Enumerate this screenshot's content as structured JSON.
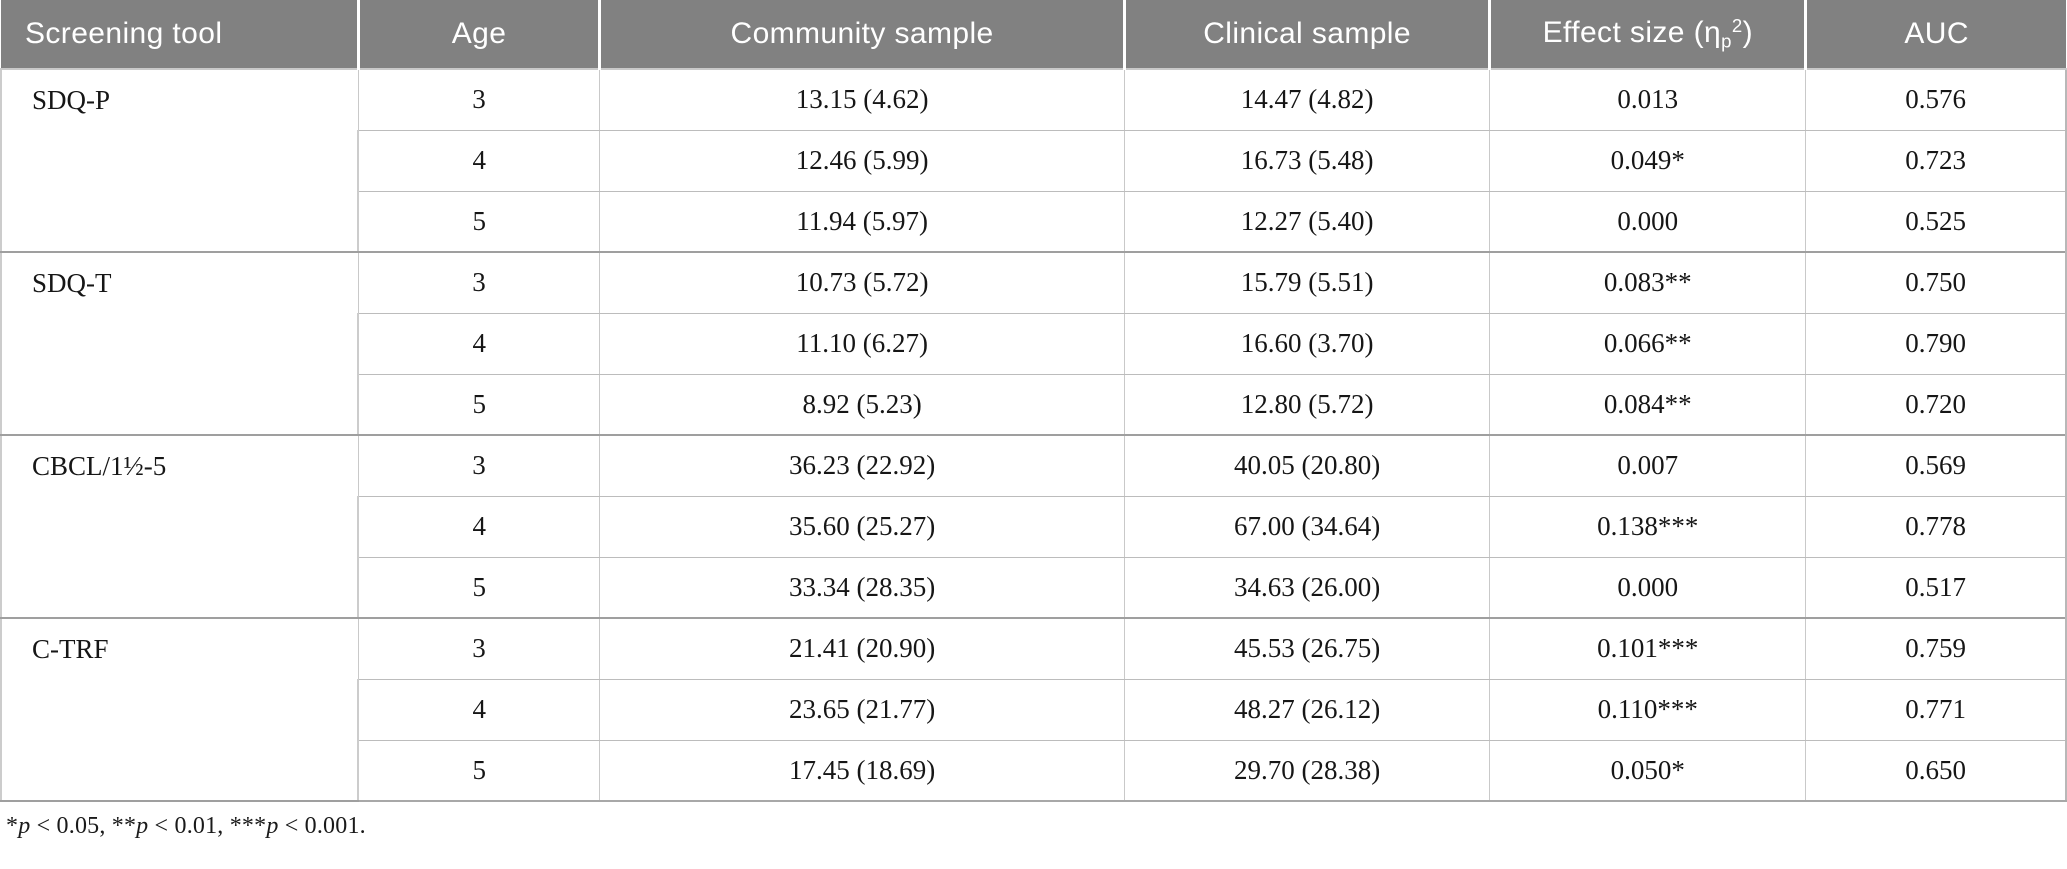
{
  "colors": {
    "header_bg": "#818181",
    "header_text": "#ffffff",
    "group_border": "#9f9f9f",
    "cell_border": "#c9c9c9",
    "body_text": "#161616"
  },
  "table": {
    "headers": {
      "screening_tool": "Screening tool",
      "age": "Age",
      "community": "Community sample",
      "clinical": "Clinical sample",
      "effect_prefix": "Effect size (η",
      "effect_sub": "p",
      "effect_sup": "2",
      "effect_suffix": ")",
      "auc": "AUC"
    },
    "groups": [
      {
        "tool": "SDQ-P",
        "rows": [
          {
            "age": "3",
            "community": "13.15 (4.62)",
            "clinical": "14.47 (4.82)",
            "effect": "0.013",
            "auc": "0.576"
          },
          {
            "age": "4",
            "community": "12.46 (5.99)",
            "clinical": "16.73 (5.48)",
            "effect": "0.049*",
            "auc": "0.723"
          },
          {
            "age": "5",
            "community": "11.94 (5.97)",
            "clinical": "12.27 (5.40)",
            "effect": "0.000",
            "auc": "0.525"
          }
        ]
      },
      {
        "tool": "SDQ-T",
        "rows": [
          {
            "age": "3",
            "community": "10.73 (5.72)",
            "clinical": "15.79 (5.51)",
            "effect": "0.083**",
            "auc": "0.750"
          },
          {
            "age": "4",
            "community": "11.10 (6.27)",
            "clinical": "16.60 (3.70)",
            "effect": "0.066**",
            "auc": "0.790"
          },
          {
            "age": "5",
            "community": "8.92 (5.23)",
            "clinical": "12.80 (5.72)",
            "effect": "0.084**",
            "auc": "0.720"
          }
        ]
      },
      {
        "tool": "CBCL/1½-5",
        "rows": [
          {
            "age": "3",
            "community": "36.23 (22.92)",
            "clinical": "40.05 (20.80)",
            "effect": "0.007",
            "auc": "0.569"
          },
          {
            "age": "4",
            "community": "35.60 (25.27)",
            "clinical": "67.00 (34.64)",
            "effect": "0.138***",
            "auc": "0.778"
          },
          {
            "age": "5",
            "community": "33.34 (28.35)",
            "clinical": "34.63 (26.00)",
            "effect": "0.000",
            "auc": "0.517"
          }
        ]
      },
      {
        "tool": "C-TRF",
        "rows": [
          {
            "age": "3",
            "community": "21.41 (20.90)",
            "clinical": "45.53 (26.75)",
            "effect": "0.101***",
            "auc": "0.759"
          },
          {
            "age": "4",
            "community": "23.65 (21.77)",
            "clinical": "48.27 (26.12)",
            "effect": "0.110***",
            "auc": "0.771"
          },
          {
            "age": "5",
            "community": "17.45 (18.69)",
            "clinical": "29.70 (28.38)",
            "effect": "0.050*",
            "auc": "0.650"
          }
        ]
      }
    ]
  },
  "footnote": {
    "segments": [
      {
        "text": "*",
        "italic": false
      },
      {
        "text": "p",
        "italic": true
      },
      {
        "text": " < 0.05, ",
        "italic": false
      },
      {
        "text": "**",
        "italic": false
      },
      {
        "text": "p",
        "italic": true
      },
      {
        "text": " < 0.01, ",
        "italic": false
      },
      {
        "text": "***",
        "italic": false
      },
      {
        "text": "p",
        "italic": true
      },
      {
        "text": " < 0.001.",
        "italic": false
      }
    ]
  }
}
